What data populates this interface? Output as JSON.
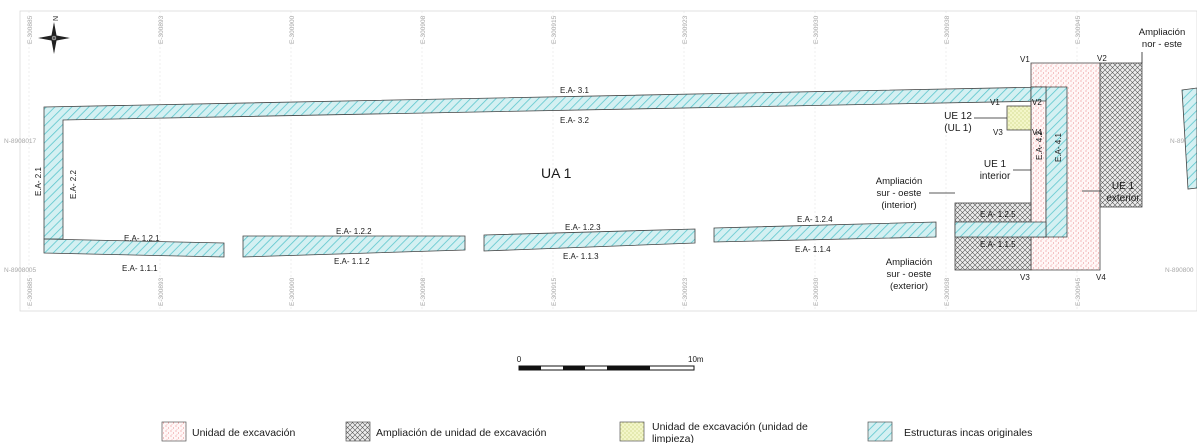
{
  "diagram": {
    "main_label": "UA 1",
    "north_symbol": "N",
    "grid_easting": [
      "E-300885",
      "E-300893",
      "E-300900",
      "E-300908",
      "E-300915",
      "E-300923",
      "E-300930",
      "E-300938",
      "E-300945"
    ],
    "grid_northing": {
      "top": "N-8908017",
      "bottom": "N-8908005",
      "right_top": "N-89080",
      "right_bottom": "N-890800"
    },
    "structures": {
      "ea_31": "E.A- 3.1",
      "ea_32": "E.A- 3.2",
      "ea_21": "E.A- 2.1",
      "ea_22": "E.A- 2.2",
      "ea_121": "E.A- 1.2.1",
      "ea_111": "E.A- 1.1.1",
      "ea_122": "E.A- 1.2.2",
      "ea_112": "E.A- 1.1.2",
      "ea_123": "E.A- 1.2.3",
      "ea_113": "E.A- 1.1.3",
      "ea_124": "E.A- 1.2.4",
      "ea_114": "E.A- 1.1.4",
      "ea_125": "E.A- 1.2.5",
      "ea_115": "E.A- 1.1.5",
      "ea_42": "E.A- 4.2",
      "ea_41": "E.A- 4.1"
    },
    "units": {
      "ue12_line1": "UE 12",
      "ue12_line2": "(UL 1)",
      "ue1_interior_line1": "UE 1",
      "ue1_interior_line2": "interior",
      "ue1_exterior_line1": "UE 1",
      "ue1_exterior_line2": "exterior",
      "amp_so_int_line1": "Ampliación",
      "amp_so_int_line2": "sur - oeste",
      "amp_so_int_line3": "(interior)",
      "amp_so_ext_line1": "Ampliación",
      "amp_so_ext_line2": "sur - oeste",
      "amp_so_ext_line3": "(exterior)",
      "amp_ne_line1": "Ampliación",
      "amp_ne_line2": "nor - este"
    },
    "vertices": {
      "v1_top": "V1",
      "v2_top": "V2",
      "v1_ue12": "V1",
      "v2_ue12": "V2",
      "v3_ue12": "V3",
      "v4_ue12": "V4",
      "v3_bottom": "V3",
      "v4_bottom": "V4"
    },
    "scale": {
      "start": "0",
      "end": "10m"
    }
  },
  "legend": {
    "items": [
      {
        "label": "Unidad de excavación"
      },
      {
        "label": "Ampliación de unidad de excavación"
      },
      {
        "label_line1": "Unidad de excavación (unidad de",
        "label_line2": "limpieza)"
      },
      {
        "label": "Estructuras  incas originales"
      }
    ]
  },
  "colors": {
    "structure_fill": "#d4f0f2",
    "structure_hatch": "#5cc6cd",
    "excavation_dots": "#e56b6b",
    "ampliacion_hatch": "#555555",
    "limpieza_fill": "#f3f6c8",
    "limpieza_dots": "#a9b84a"
  }
}
